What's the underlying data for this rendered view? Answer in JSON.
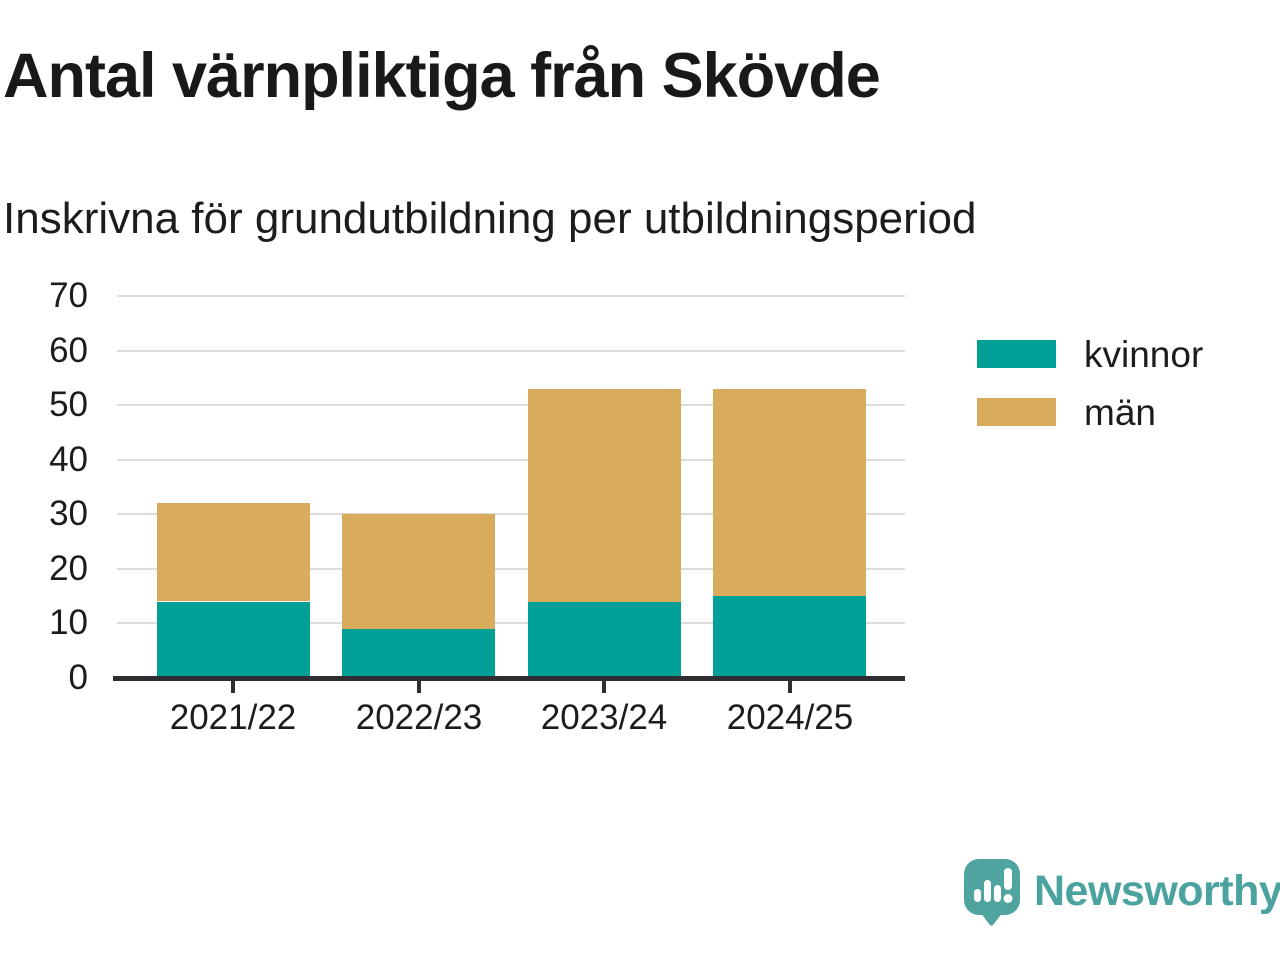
{
  "header": {
    "title": "Antal värnpliktiga från Skövde",
    "subtitle": "Inskrivna för grundutbildning per utbildningsperiod"
  },
  "chart_data": {
    "type": "bar",
    "stacked": true,
    "title": "Antal värnpliktiga från Skövde",
    "subtitle": "Inskrivna för grundutbildning per utbildningsperiod",
    "categories": [
      "2021/22",
      "2022/23",
      "2023/24",
      "2024/25"
    ],
    "series": [
      {
        "name": "kvinnor",
        "color": "#00a096",
        "values": [
          14,
          9,
          14,
          15
        ]
      },
      {
        "name": "män",
        "color": "#d9ab5c",
        "values": [
          18,
          21,
          39,
          38
        ]
      }
    ],
    "totals": [
      32,
      30,
      53,
      53
    ],
    "xlabel": "",
    "ylabel": "",
    "ylim": [
      0,
      70
    ],
    "yticks": [
      0,
      10,
      20,
      30,
      40,
      50,
      60,
      70
    ],
    "grid": true,
    "legend_position": "right"
  },
  "legend": {
    "items": [
      {
        "label": "kvinnor",
        "color": "#00a096"
      },
      {
        "label": "män",
        "color": "#d9ab5c"
      }
    ]
  },
  "branding": {
    "logo_text": "Newsworthy",
    "logo_color": "#4ba3a0",
    "logo_icon": "bar-chart-speech-bubble-icon"
  },
  "colors": {
    "background": "#ffffff",
    "text": "#1c1c1c",
    "gridline": "#dcdcdc",
    "axis": "#2e2e33",
    "kvinnor": "#00a096",
    "man": "#d9ab5c",
    "brand_teal": "#4ba3a0"
  }
}
